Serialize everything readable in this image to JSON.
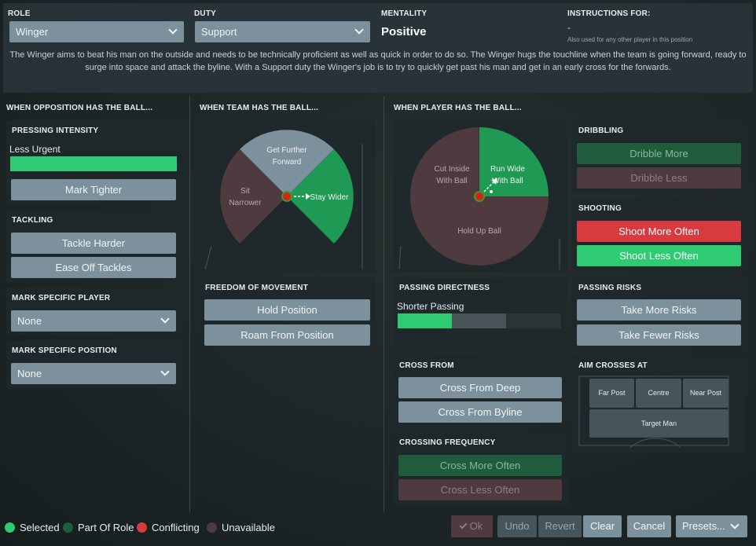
{
  "header": {
    "role_label": "ROLE",
    "role_value": "Winger",
    "duty_label": "DUTY",
    "duty_value": "Support",
    "mentality_label": "MENTALITY",
    "mentality_value": "Positive",
    "instructions_label": "INSTRUCTIONS FOR:",
    "instructions_value": "-",
    "instructions_note": "Also used for any other player in this position",
    "description": "The Winger aims to beat his man on the outside and needs to be technically proficient as well as quick in order to do so. The Winger hugs the touchline when the team is going forward, ready to surge into space and attack the byline. With a Support duty the Winger's job is to try to quickly get past his man and get in an early cross for the forwards."
  },
  "opposition": {
    "heading": "WHEN OPPOSITION HAS THE BALL...",
    "pressing": {
      "title": "PRESSING INTENSITY",
      "value_text": "Less Urgent",
      "level": 1.0,
      "button": "Mark Tighter"
    },
    "tackling": {
      "title": "TACKLING",
      "harder": "Tackle Harder",
      "ease": "Ease Off Tackles"
    },
    "mark_player": {
      "title": "MARK SPECIFIC PLAYER",
      "value": "None"
    },
    "mark_position": {
      "title": "MARK SPECIFIC POSITION",
      "value": "None"
    }
  },
  "team_ball": {
    "heading": "WHEN TEAM HAS THE BALL...",
    "wheel": {
      "forward": "Get Further",
      "forward2": "Forward",
      "narrow": "Sit",
      "narrow2": "Narrower",
      "wider": "Stay Wider"
    },
    "freedom": {
      "title": "FREEDOM OF MOVEMENT",
      "hold": "Hold Position",
      "roam": "Roam From Position"
    }
  },
  "player_ball": {
    "heading": "WHEN PLAYER HAS THE BALL...",
    "wheel": {
      "cut": "Cut Inside",
      "cut2": "With Ball",
      "run": "Run Wide",
      "run2": "With Ball",
      "hold": "Hold Up Ball"
    },
    "dribbling": {
      "title": "DRIBBLING",
      "more": "Dribble More",
      "less": "Dribble Less"
    },
    "shooting": {
      "title": "SHOOTING",
      "more": "Shoot More Often",
      "less": "Shoot Less Often"
    },
    "passing_directness": {
      "title": "PASSING DIRECTNESS",
      "value_text": "Shorter Passing",
      "level": 0.33
    },
    "passing_risks": {
      "title": "PASSING RISKS",
      "more": "Take More Risks",
      "fewer": "Take Fewer Risks"
    },
    "cross_from": {
      "title": "CROSS FROM",
      "deep": "Cross From Deep",
      "byline": "Cross From Byline"
    },
    "aim_crosses": {
      "title": "AIM CROSSES AT",
      "far": "Far Post",
      "centre": "Centre",
      "near": "Near Post",
      "target": "Target Man"
    },
    "crossing_frequency": {
      "title": "CROSSING FREQUENCY",
      "more": "Cross More Often",
      "less": "Cross Less Often"
    }
  },
  "legend": {
    "selected": "Selected",
    "part": "Part Of Role",
    "conflicting": "Conflicting",
    "unavailable": "Unavailable"
  },
  "footer": {
    "ok": "Ok",
    "undo": "Undo",
    "revert": "Revert",
    "clear": "Clear",
    "cancel": "Cancel",
    "presets": "Presets..."
  },
  "colors": {
    "selected": "#2fcb72",
    "part": "#1f5b3c",
    "conflicting": "#d83b3f",
    "unavailable": "#4e3a3f",
    "button": "#7d919c"
  }
}
